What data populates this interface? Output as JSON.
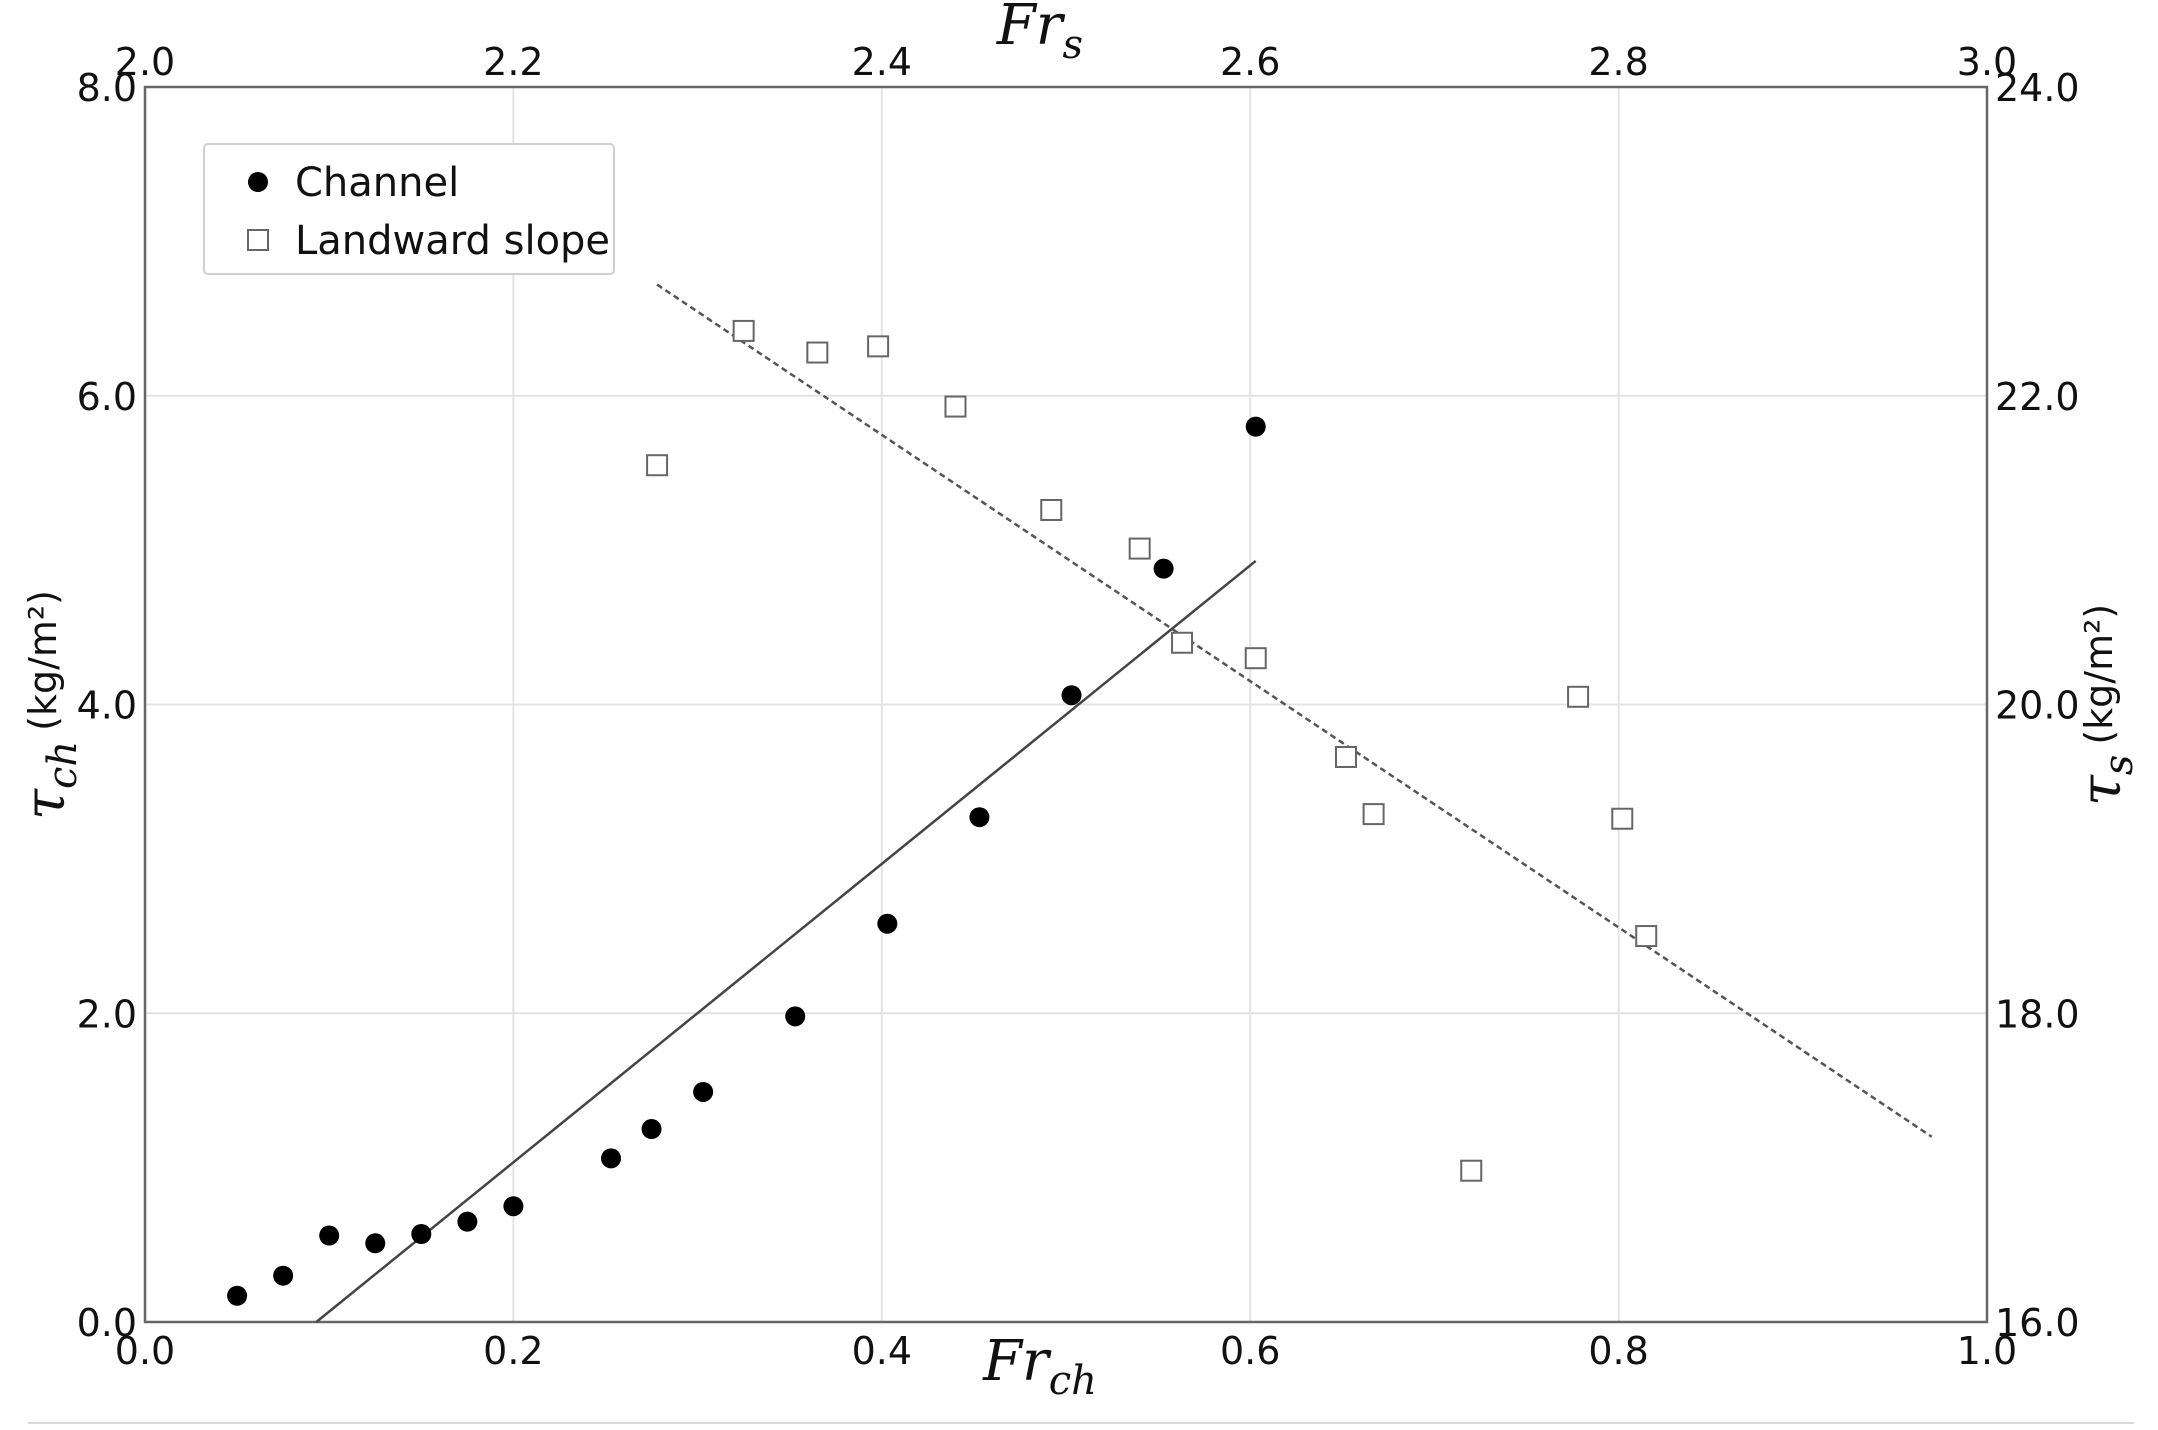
{
  "chart_data": {
    "type": "scatter",
    "title": "",
    "x_bottom": {
      "label_main": "Fr",
      "label_sub": "ch",
      "range": [
        0.0,
        1.0
      ],
      "ticks": [
        0.0,
        0.2,
        0.4,
        0.6,
        0.8,
        1.0
      ],
      "tick_labels": [
        "0.0",
        "0.2",
        "0.4",
        "0.6",
        "0.8",
        "1.0"
      ]
    },
    "x_top": {
      "label_main": "Fr",
      "label_sub": "s",
      "range": [
        2.0,
        3.0
      ],
      "ticks": [
        2.0,
        2.2,
        2.4,
        2.6,
        2.8,
        3.0
      ],
      "tick_labels": [
        "2.0",
        "2.2",
        "2.4",
        "2.6",
        "2.8",
        "3.0"
      ]
    },
    "y_left": {
      "label_main": "τ",
      "label_sub": "ch",
      "label_unit": "(kg/m²)",
      "range": [
        0.0,
        8.0
      ],
      "ticks": [
        0.0,
        2.0,
        4.0,
        6.0,
        8.0
      ],
      "tick_labels": [
        "0.0",
        "2.0",
        "4.0",
        "6.0",
        "8.0"
      ]
    },
    "y_right": {
      "label_main": "τ",
      "label_sub": "s",
      "label_unit": "(kg/m²)",
      "range": [
        16.0,
        24.0
      ],
      "ticks": [
        16.0,
        18.0,
        20.0,
        22.0,
        24.0
      ],
      "tick_labels": [
        "16.0",
        "18.0",
        "20.0",
        "22.0",
        "24.0"
      ]
    },
    "grid": true,
    "legend_position": "top-left",
    "series": [
      {
        "name": "Channel",
        "marker": "filled-circle",
        "color": "#000000",
        "axes": "bottom-left",
        "points": [
          [
            0.05,
            0.17
          ],
          [
            0.075,
            0.3
          ],
          [
            0.1,
            0.56
          ],
          [
            0.125,
            0.51
          ],
          [
            0.15,
            0.57
          ],
          [
            0.175,
            0.65
          ],
          [
            0.2,
            0.75
          ],
          [
            0.253,
            1.06
          ],
          [
            0.275,
            1.25
          ],
          [
            0.303,
            1.49
          ],
          [
            0.353,
            1.98
          ],
          [
            0.403,
            2.58
          ],
          [
            0.453,
            3.27
          ],
          [
            0.503,
            4.06
          ],
          [
            0.553,
            4.88
          ],
          [
            0.603,
            5.8
          ]
        ],
        "fit_line": {
          "style": "solid",
          "color": "#444444",
          "from": [
            0.093,
            0.0
          ],
          "to": [
            0.603,
            4.93
          ]
        }
      },
      {
        "name": "Landward slope",
        "marker": "open-square",
        "color": "#666666",
        "axes": "top-right",
        "points": [
          [
            2.278,
            21.55
          ],
          [
            2.325,
            22.42
          ],
          [
            2.365,
            22.28
          ],
          [
            2.398,
            22.32
          ],
          [
            2.44,
            21.93
          ],
          [
            2.492,
            21.26
          ],
          [
            2.54,
            21.01
          ],
          [
            2.563,
            20.4
          ],
          [
            2.603,
            20.3
          ],
          [
            2.652,
            19.66
          ],
          [
            2.667,
            19.29
          ],
          [
            2.72,
            16.98
          ],
          [
            2.778,
            20.05
          ],
          [
            2.802,
            19.26
          ],
          [
            2.815,
            18.5
          ]
        ],
        "fit_line": {
          "style": "dashed",
          "color": "#555555",
          "from": [
            2.278,
            22.72
          ],
          "to": [
            2.97,
            17.2
          ]
        }
      }
    ]
  }
}
